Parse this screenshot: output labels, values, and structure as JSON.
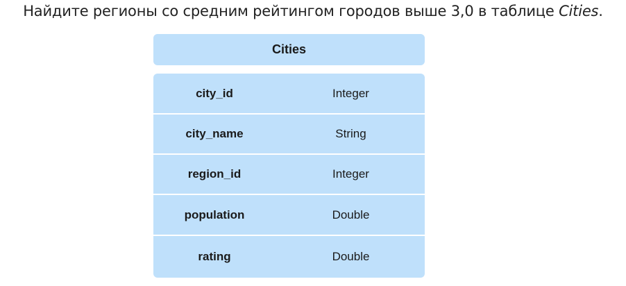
{
  "question": {
    "text": "Найдите регионы со средним рейтингом городов выше 3,0 в таблице ",
    "table_ref": "Cities",
    "end": "."
  },
  "table": {
    "title": "Cities",
    "fields": [
      {
        "name": "city_id",
        "type": "Integer"
      },
      {
        "name": "city_name",
        "type": "String"
      },
      {
        "name": "region_id",
        "type": "Integer"
      },
      {
        "name": "population",
        "type": "Double"
      },
      {
        "name": "rating",
        "type": "Double"
      }
    ]
  }
}
